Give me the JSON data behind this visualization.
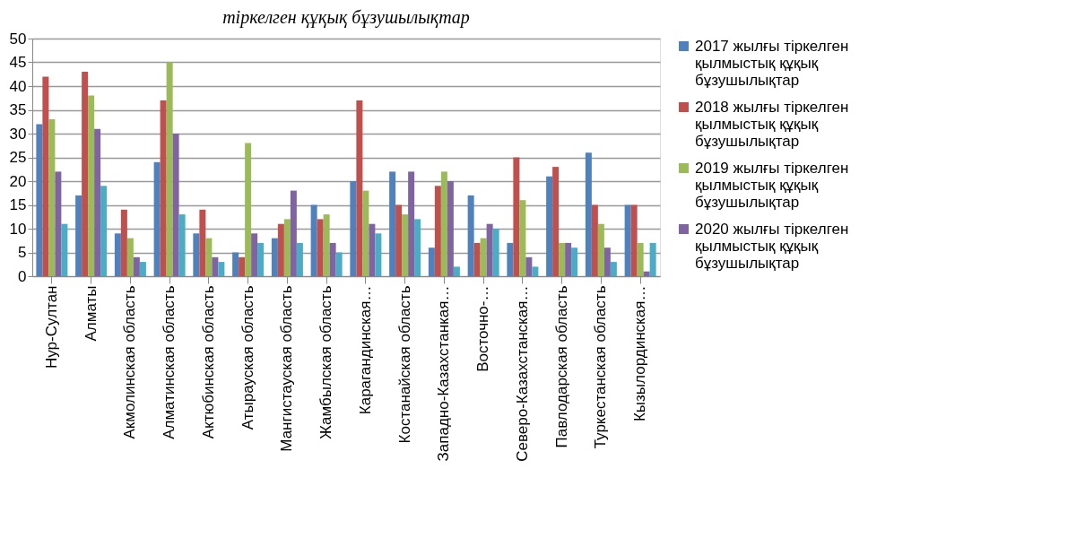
{
  "chart_data": {
    "type": "bar",
    "title": "тіркелген құқық бұзушылықтар",
    "categories": [
      "Нур-Султан",
      "Алматы",
      "Акмолинская область",
      "Алматинская область",
      "Актюбинская область",
      "Атырауская область",
      "Мангистауская область",
      "Жамбылская область",
      "Карагандинская…",
      "Костанайская область",
      "Западно-Казахстанкая…",
      "Восточно-…",
      "Северо-Казахстанская…",
      "Павлодарская область",
      "Туркестанская область",
      "Кызылординская…"
    ],
    "series": [
      {
        "name": "2017 жылғы тіркелген қылмыстық құқық бұзушылықтар",
        "color": "#4f81bd",
        "values": [
          32,
          17,
          9,
          24,
          9,
          5,
          8,
          15,
          20,
          22,
          6,
          17,
          7,
          21,
          26,
          15
        ]
      },
      {
        "name": "2018 жылғы тіркелген қылмыстық құқық бұзушылықтар",
        "color": "#c0504d",
        "values": [
          42,
          43,
          14,
          37,
          14,
          4,
          11,
          12,
          37,
          15,
          19,
          7,
          25,
          23,
          15,
          15
        ]
      },
      {
        "name": "2019 жылғы тіркелген қылмыстық құқық бұзушылықтар",
        "color": "#9bbb59",
        "values": [
          33,
          38,
          8,
          45,
          8,
          28,
          12,
          13,
          18,
          13,
          22,
          8,
          16,
          7,
          11,
          7
        ]
      },
      {
        "name": "2020 жылғы тіркелген қылмыстық құқық бұзушылықтар",
        "color": "#8064a2",
        "values": [
          22,
          31,
          4,
          30,
          4,
          9,
          18,
          7,
          11,
          22,
          20,
          11,
          4,
          7,
          6,
          1
        ]
      },
      {
        "color": "#4bacc6",
        "values": [
          11,
          19,
          3,
          13,
          3,
          7,
          7,
          5,
          9,
          12,
          2,
          10,
          2,
          6,
          3,
          7
        ]
      }
    ],
    "ylim": [
      0,
      50
    ],
    "yticks": [
      0,
      5,
      10,
      15,
      20,
      25,
      30,
      35,
      40,
      45,
      50
    ],
    "grid": "y",
    "legend": "right"
  }
}
